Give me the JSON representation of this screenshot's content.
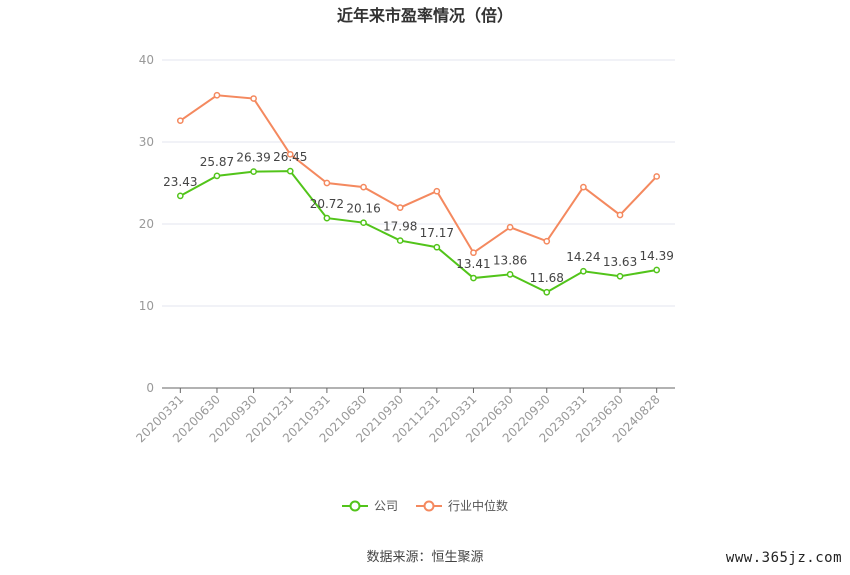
{
  "chart_data": {
    "type": "line",
    "title": "近年来市盈率情况（倍）",
    "categories": [
      "20200331",
      "20200630",
      "20200930",
      "20201231",
      "20210331",
      "20210630",
      "20210930",
      "20211231",
      "20220331",
      "20220630",
      "20220930",
      "20230331",
      "20230630",
      "20240828"
    ],
    "series": [
      {
        "name": "公司",
        "color": "#52c41a",
        "values": [
          23.43,
          25.87,
          26.39,
          26.45,
          20.72,
          20.16,
          17.98,
          17.17,
          13.41,
          13.86,
          11.68,
          14.24,
          13.63,
          14.39
        ],
        "labels": [
          "23.43",
          "25.87",
          "26.39",
          "26.45",
          "20.72",
          "20.16",
          "17.98",
          "17.17",
          "13.41",
          "13.86",
          "11.68",
          "14.24",
          "13.63",
          "14.39"
        ]
      },
      {
        "name": "行业中位数",
        "color": "#f4895f",
        "values": [
          32.6,
          35.7,
          35.3,
          28.5,
          25.0,
          24.5,
          22.0,
          24.0,
          16.5,
          19.6,
          17.9,
          24.5,
          21.1,
          25.8
        ]
      }
    ],
    "ylim": [
      0,
      40
    ],
    "yticks": [
      0,
      10,
      20,
      30,
      40
    ],
    "grid": true,
    "legend_position": "bottom"
  },
  "source_note": "数据来源：恒生聚源",
  "watermark": "www.365jz.com"
}
